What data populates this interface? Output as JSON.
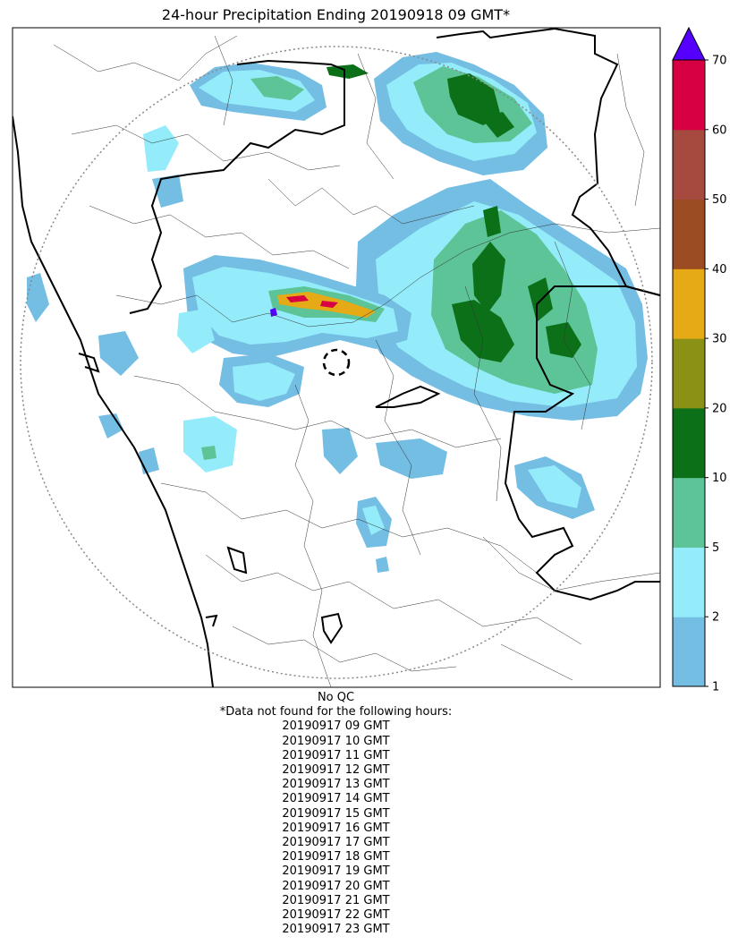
{
  "title": "24-hour Precipitation Ending 20190918 09 GMT*",
  "colorbar": {
    "ticks": [
      "1",
      "2",
      "5",
      "10",
      "20",
      "30",
      "40",
      "50",
      "60",
      "70"
    ],
    "colors": [
      "#74bde3",
      "#94ecfa",
      "#5cc496",
      "#0c7018",
      "#8b9114",
      "#e5aa15",
      "#9c4c22",
      "#a64a40",
      "#d60042"
    ],
    "extend_color": "#5500ff"
  },
  "notes": {
    "qc": "No QC",
    "header": "*Data not found for the following hours:",
    "hours": [
      "20190917 09 GMT",
      "20190917 10 GMT",
      "20190917 11 GMT",
      "20190917 12 GMT",
      "20190917 13 GMT",
      "20190917 14 GMT",
      "20190917 15 GMT",
      "20190917 16 GMT",
      "20190917 17 GMT",
      "20190917 18 GMT",
      "20190917 19 GMT",
      "20190917 20 GMT",
      "20190917 21 GMT",
      "20190917 22 GMT",
      "20190917 23 GMT"
    ]
  }
}
